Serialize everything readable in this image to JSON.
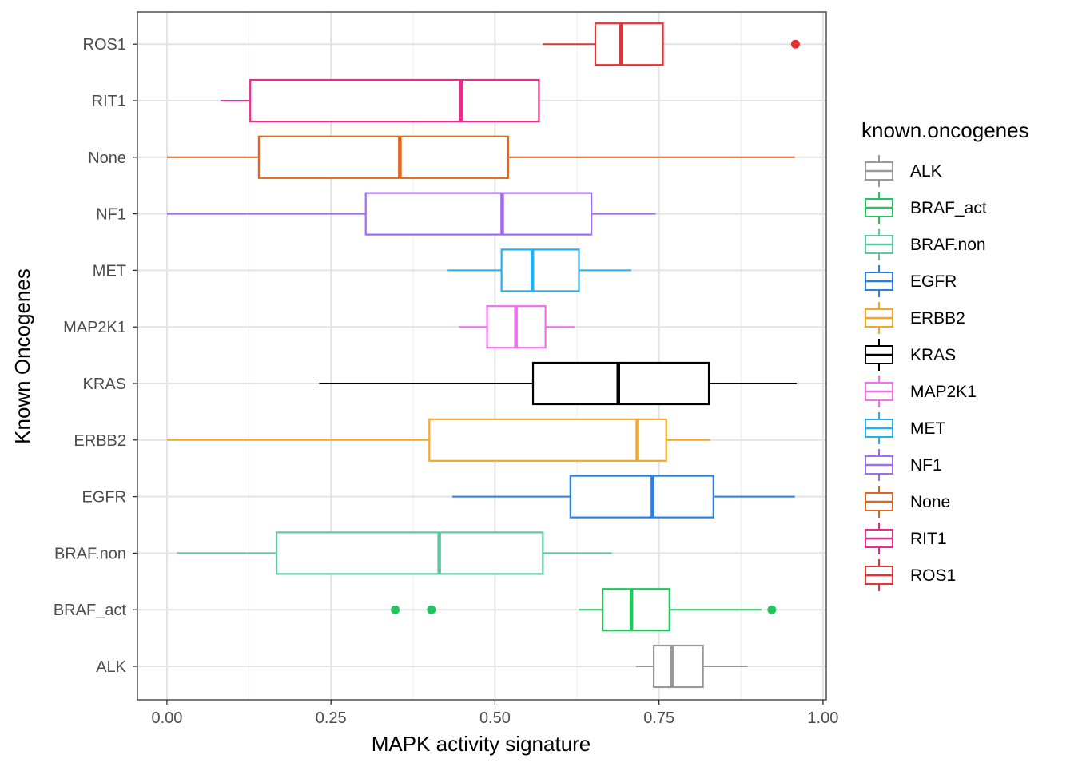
{
  "chart_data": {
    "type": "boxplot",
    "orientation": "horizontal",
    "xlabel": "MAPK activity signature",
    "ylabel": "Known Oncogenes",
    "xlim": [
      -0.045,
      1.005
    ],
    "x_ticks": [
      {
        "value": 0.0,
        "label": "0.00"
      },
      {
        "value": 0.25,
        "label": "0.25"
      },
      {
        "value": 0.5,
        "label": "0.50"
      },
      {
        "value": 0.75,
        "label": "0.75"
      },
      {
        "value": 1.0,
        "label": "1.00"
      }
    ],
    "grid": true,
    "legend": {
      "title": "known.oncogenes",
      "position": "right"
    },
    "series": [
      {
        "name": "ALK",
        "color": "#999999",
        "whisker_low": 0.715,
        "q1": 0.742,
        "median": 0.77,
        "q3": 0.817,
        "whisker_high": 0.885,
        "outliers": []
      },
      {
        "name": "BRAF_act",
        "color": "#22c55e",
        "whisker_low": 0.628,
        "q1": 0.664,
        "median": 0.708,
        "q3": 0.766,
        "whisker_high": 0.906,
        "outliers": [
          0.348,
          0.403,
          0.922
        ]
      },
      {
        "name": "BRAF.non",
        "color": "#5cc8a0",
        "whisker_low": 0.015,
        "q1": 0.167,
        "median": 0.415,
        "q3": 0.573,
        "whisker_high": 0.678,
        "outliers": []
      },
      {
        "name": "EGFR",
        "color": "#2a7de1",
        "whisker_low": 0.435,
        "q1": 0.615,
        "median": 0.74,
        "q3": 0.833,
        "whisker_high": 0.957,
        "outliers": []
      },
      {
        "name": "ERBB2",
        "color": "#f5a623",
        "whisker_low": 0.0,
        "q1": 0.4,
        "median": 0.717,
        "q3": 0.761,
        "whisker_high": 0.828,
        "outliers": []
      },
      {
        "name": "KRAS",
        "color": "#000000",
        "whisker_low": 0.232,
        "q1": 0.558,
        "median": 0.688,
        "q3": 0.826,
        "whisker_high": 0.96,
        "outliers": []
      },
      {
        "name": "MAP2K1",
        "color": "#f36ef0",
        "whisker_low": 0.445,
        "q1": 0.488,
        "median": 0.532,
        "q3": 0.577,
        "whisker_high": 0.622,
        "outliers": []
      },
      {
        "name": "MET",
        "color": "#22b0ee",
        "whisker_low": 0.428,
        "q1": 0.51,
        "median": 0.557,
        "q3": 0.628,
        "whisker_high": 0.708,
        "outliers": []
      },
      {
        "name": "NF1",
        "color": "#9f6cf0",
        "whisker_low": 0.0,
        "q1": 0.303,
        "median": 0.511,
        "q3": 0.647,
        "whisker_high": 0.745,
        "outliers": []
      },
      {
        "name": "None",
        "color": "#e0651c",
        "whisker_low": 0.0,
        "q1": 0.14,
        "median": 0.355,
        "q3": 0.52,
        "whisker_high": 0.957,
        "outliers": []
      },
      {
        "name": "RIT1",
        "color": "#f0288c",
        "whisker_low": 0.082,
        "q1": 0.127,
        "median": 0.448,
        "q3": 0.567,
        "whisker_high": 0.567,
        "outliers": []
      },
      {
        "name": "ROS1",
        "color": "#e53236",
        "whisker_low": 0.573,
        "q1": 0.653,
        "median": 0.692,
        "q3": 0.756,
        "whisker_high": 0.756,
        "outliers": [
          0.958
        ]
      }
    ]
  }
}
